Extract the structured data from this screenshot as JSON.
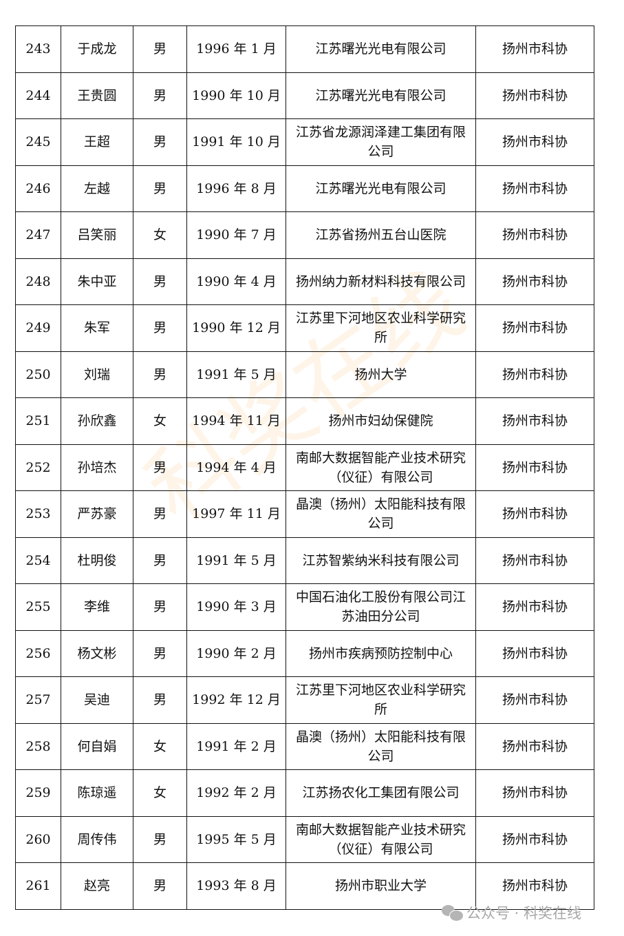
{
  "rows": [
    {
      "no": "243",
      "name": "于成龙",
      "gender": "男",
      "birth": "1996 年 1 月",
      "company": "江苏曙光光电有限公司",
      "recommender": "扬州市科协"
    },
    {
      "no": "244",
      "name": "王贵圆",
      "gender": "男",
      "birth": "1990 年 10 月",
      "company": "江苏曙光光电有限公司",
      "recommender": "扬州市科协"
    },
    {
      "no": "245",
      "name": "王超",
      "gender": "男",
      "birth": "1991 年 10 月",
      "company": "江苏省龙源润泽建工集团有限公司",
      "recommender": "扬州市科协"
    },
    {
      "no": "246",
      "name": "左越",
      "gender": "男",
      "birth": "1996 年 8 月",
      "company": "江苏曙光光电有限公司",
      "recommender": "扬州市科协"
    },
    {
      "no": "247",
      "name": "吕笑丽",
      "gender": "女",
      "birth": "1990 年 7 月",
      "company": "江苏省扬州五台山医院",
      "recommender": "扬州市科协"
    },
    {
      "no": "248",
      "name": "朱中亚",
      "gender": "男",
      "birth": "1990 年 4 月",
      "company": "扬州纳力新材料科技有限公司",
      "recommender": "扬州市科协"
    },
    {
      "no": "249",
      "name": "朱军",
      "gender": "男",
      "birth": "1990 年 12 月",
      "company": "江苏里下河地区农业科学研究所",
      "recommender": "扬州市科协"
    },
    {
      "no": "250",
      "name": "刘瑞",
      "gender": "男",
      "birth": "1991 年 5 月",
      "company": "扬州大学",
      "recommender": "扬州市科协"
    },
    {
      "no": "251",
      "name": "孙欣鑫",
      "gender": "女",
      "birth": "1994 年 11 月",
      "company": "扬州市妇幼保健院",
      "recommender": "扬州市科协"
    },
    {
      "no": "252",
      "name": "孙培杰",
      "gender": "男",
      "birth": "1994 年 4 月",
      "company": "南邮大数据智能产业技术研究（仪征）有限公司",
      "recommender": "扬州市科协"
    },
    {
      "no": "253",
      "name": "严苏豪",
      "gender": "男",
      "birth": "1997 年 11 月",
      "company": "晶澳（扬州）太阳能科技有限公司",
      "recommender": "扬州市科协"
    },
    {
      "no": "254",
      "name": "杜明俊",
      "gender": "男",
      "birth": "1991 年 5 月",
      "company": "江苏智紫纳米科技有限公司",
      "recommender": "扬州市科协"
    },
    {
      "no": "255",
      "name": "李维",
      "gender": "男",
      "birth": "1990 年 3 月",
      "company": "中国石油化工股份有限公司江苏油田分公司",
      "recommender": "扬州市科协"
    },
    {
      "no": "256",
      "name": "杨文彬",
      "gender": "男",
      "birth": "1990 年 2 月",
      "company": "扬州市疾病预防控制中心",
      "recommender": "扬州市科协"
    },
    {
      "no": "257",
      "name": "吴迪",
      "gender": "男",
      "birth": "1992 年 12 月",
      "company": "江苏里下河地区农业科学研究所",
      "recommender": "扬州市科协"
    },
    {
      "no": "258",
      "name": "何自娟",
      "gender": "女",
      "birth": "1991 年 2 月",
      "company": "晶澳（扬州）太阳能科技有限公司",
      "recommender": "扬州市科协"
    },
    {
      "no": "259",
      "name": "陈琼遥",
      "gender": "女",
      "birth": "1992 年 2 月",
      "company": "江苏扬农化工集团有限公司",
      "recommender": "扬州市科协"
    },
    {
      "no": "260",
      "name": "周传伟",
      "gender": "男",
      "birth": "1995 年 5 月",
      "company": "南邮大数据智能产业技术研究（仪征）有限公司",
      "recommender": "扬州市科协"
    },
    {
      "no": "261",
      "name": "赵亮",
      "gender": "男",
      "birth": "1993 年 8 月",
      "company": "扬州市职业大学",
      "recommender": "扬州市科协"
    }
  ],
  "watermark": "科奖在线",
  "source_label": "公众号 · 科奖在线",
  "source_icon": "wechat-icon"
}
